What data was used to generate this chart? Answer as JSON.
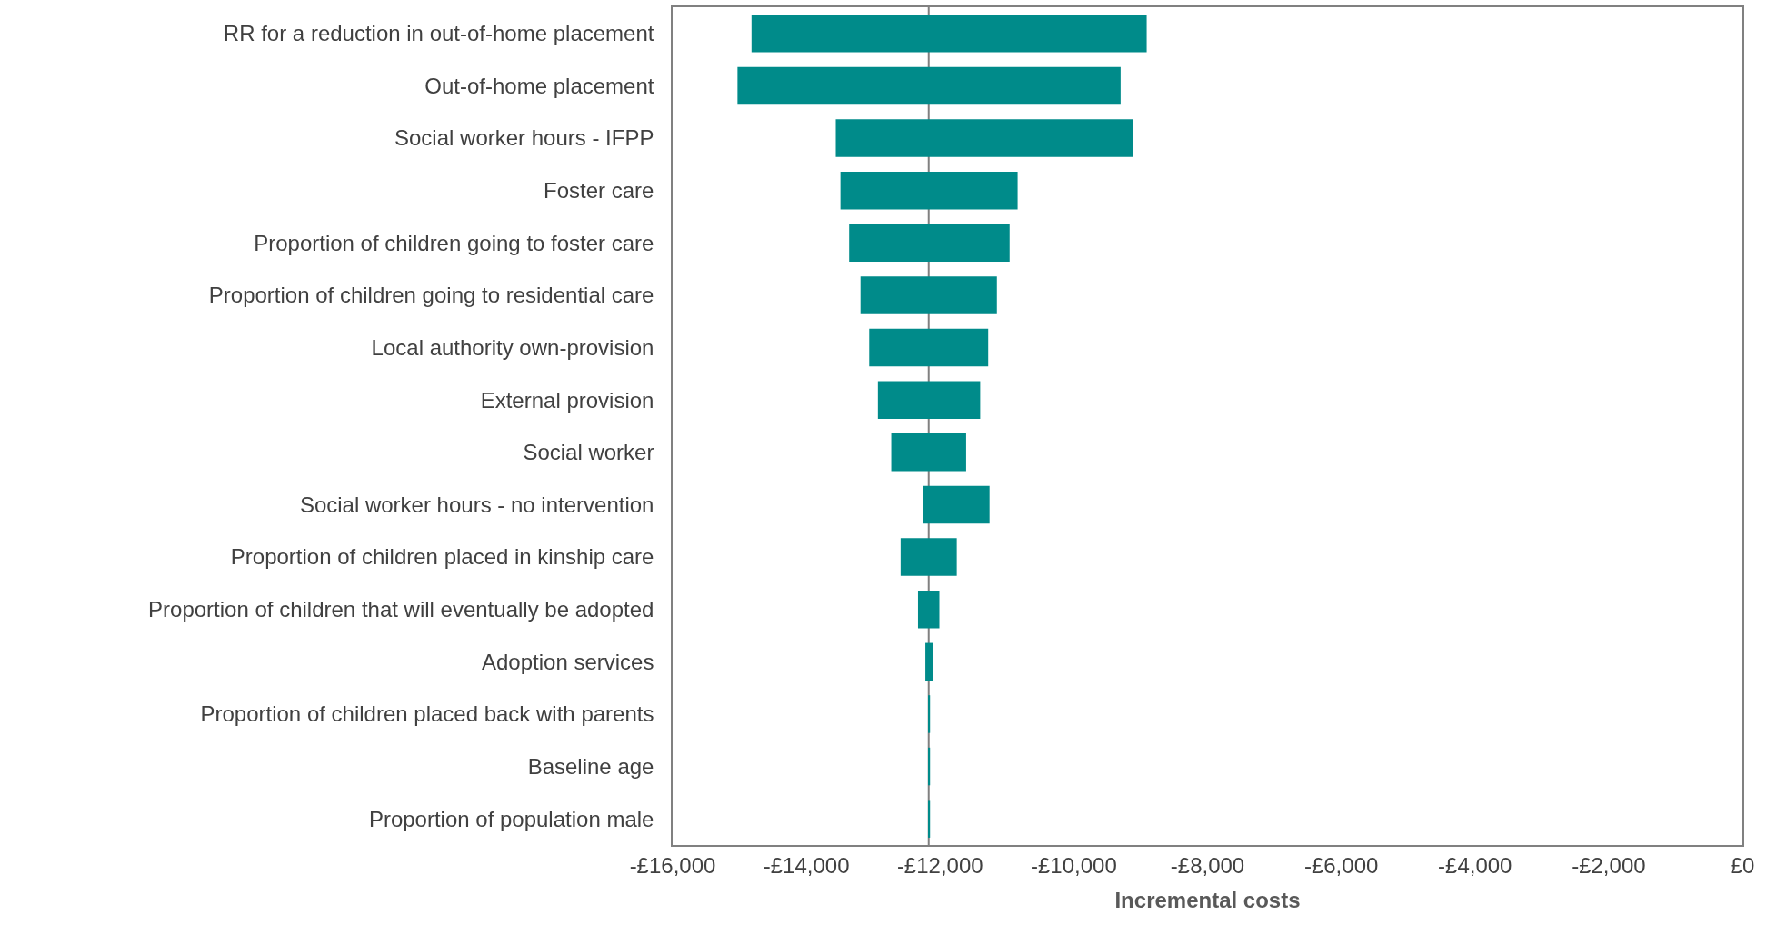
{
  "chart_data": {
    "type": "bar",
    "orientation": "horizontal",
    "xlabel": "Incremental costs",
    "categories": [
      "RR for a reduction in out-of-home placement",
      "Out-of-home placement",
      "Social worker hours - IFPP",
      "Foster care",
      "Proportion of children going to foster care",
      "Proportion of children going to residential care",
      "Local authority own-provision",
      "External provision",
      "Social worker",
      "Social worker hours - no intervention",
      "Proportion of children placed in kinship care",
      "Proportion of children that will eventually be adopted",
      "Adoption services",
      "Proportion of children placed back with parents",
      "Baseline age",
      "Proportion of population male"
    ],
    "base": [
      -14820,
      -15030,
      -13560,
      -13490,
      -13360,
      -13190,
      -13060,
      -12930,
      -12730,
      -12260,
      -12590,
      -12330,
      -12220,
      -12180,
      -12180,
      -12180
    ],
    "values": [
      5910,
      5730,
      4440,
      2650,
      2400,
      2040,
      1780,
      1530,
      1120,
      1000,
      840,
      320,
      110,
      30,
      30,
      30
    ],
    "color": "#008b8a",
    "xlim": [
      -16000,
      0
    ],
    "xticks": [
      {
        "value": -16000,
        "label": "-£16,000"
      },
      {
        "value": -14000,
        "label": "-£14,000"
      },
      {
        "value": -12000,
        "label": "-£12,000"
      },
      {
        "value": -10000,
        "label": "-£10,000"
      },
      {
        "value": -8000,
        "label": "-£8,000"
      },
      {
        "value": -6000,
        "label": "-£6,000"
      },
      {
        "value": -4000,
        "label": "-£4,000"
      },
      {
        "value": -2000,
        "label": "-£2,000"
      },
      {
        "value": 0,
        "label": "£0"
      }
    ],
    "ref_lines": [
      {
        "axis": "x",
        "value": -12170,
        "color": "#808080"
      }
    ]
  }
}
